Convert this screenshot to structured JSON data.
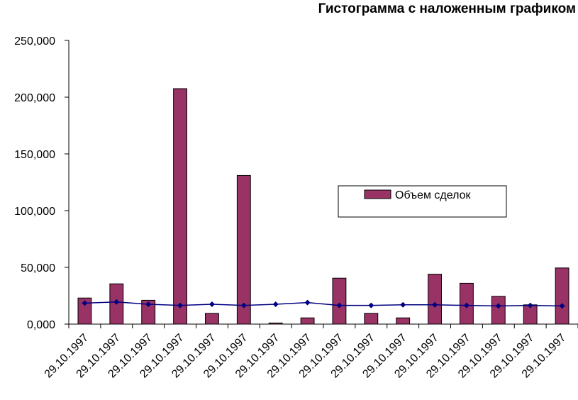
{
  "chart_data": {
    "type": "bar-line",
    "title": "Гистограмма с наложенным графиком",
    "categories": [
      "29.10.1997",
      "29.10.1997",
      "29.10.1997",
      "29.10.1997",
      "29.10.1997",
      "29.10.1997",
      "29.10.1997",
      "29.10.1997",
      "29.10.1997",
      "29.10.1997",
      "29.10.1997",
      "29.10.1997",
      "29.10.1997",
      "29.10.1997",
      "29.10.1997",
      "29.10.1997"
    ],
    "series": [
      {
        "name": "Объем сделок",
        "type": "bar",
        "color": "#993366",
        "values": [
          23000,
          35500,
          21000,
          207500,
          9500,
          131000,
          1000,
          5500,
          40500,
          9500,
          5500,
          44000,
          36000,
          24500,
          17000,
          49500
        ]
      },
      {
        "type": "line",
        "color": "#000080",
        "values": [
          18500,
          19500,
          17500,
          16500,
          17500,
          16500,
          17500,
          19000,
          16500,
          16500,
          17000,
          17000,
          16500,
          16000,
          16500,
          16000
        ]
      }
    ],
    "ylim": [
      0,
      250000
    ],
    "yticks": [
      {
        "value": 0,
        "label": "0,000"
      },
      {
        "value": 50000,
        "label": "50,000"
      },
      {
        "value": 100000,
        "label": "100,000"
      },
      {
        "value": 150000,
        "label": "150,000"
      },
      {
        "value": 200000,
        "label": "200,000"
      },
      {
        "value": 250000,
        "label": "250,000"
      }
    ],
    "grid": false,
    "legend": "center-right"
  }
}
